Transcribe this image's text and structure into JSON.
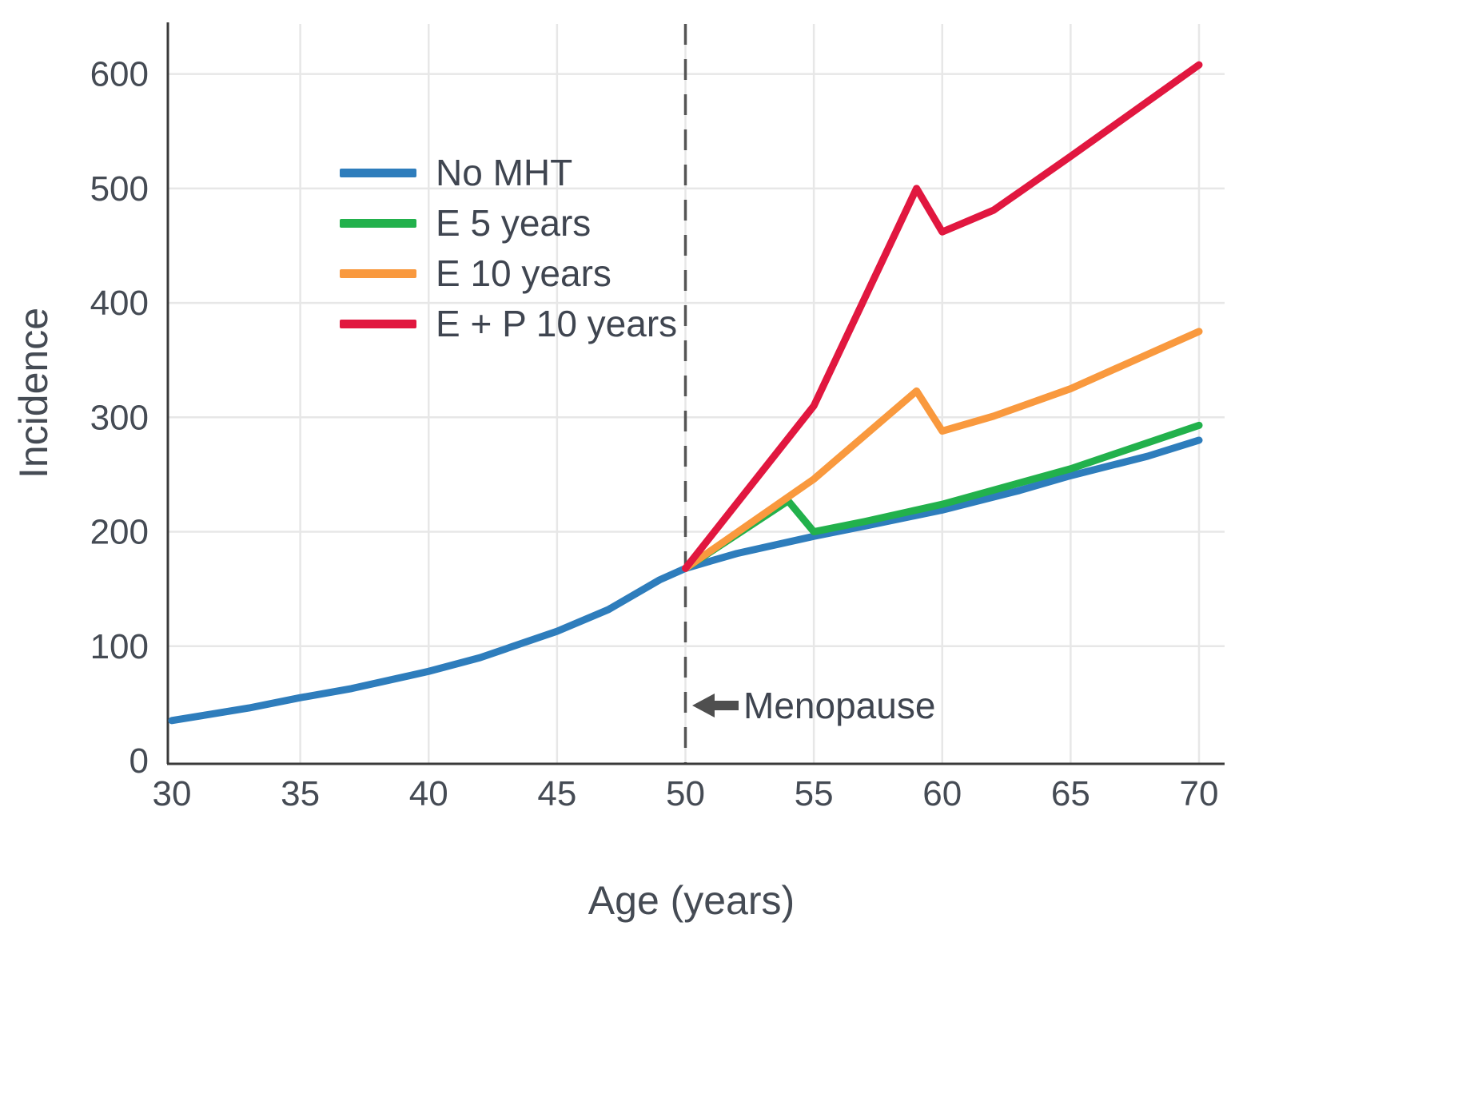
{
  "chart_data": {
    "type": "line",
    "title": "",
    "xlabel": "Age (years)",
    "ylabel": "Incidence",
    "x_ticks": [
      30,
      35,
      40,
      45,
      50,
      55,
      60,
      65,
      70
    ],
    "y_ticks": [
      0,
      100,
      200,
      300,
      400,
      500,
      600
    ],
    "xlim": [
      30,
      70
    ],
    "ylim": [
      0,
      650
    ],
    "grid": true,
    "legend_position": "upper-left-inside",
    "annotation": {
      "label": "Menopause",
      "x": 50,
      "style": "dashed-vertical-line",
      "line_color": "#555555"
    },
    "series": [
      {
        "name": "No MHT",
        "color": "#2e7dbc",
        "points": [
          [
            30,
            35
          ],
          [
            33,
            46
          ],
          [
            35,
            55
          ],
          [
            37,
            63
          ],
          [
            40,
            78
          ],
          [
            42,
            90
          ],
          [
            45,
            113
          ],
          [
            47,
            132
          ],
          [
            49,
            158
          ],
          [
            50,
            168
          ],
          [
            52,
            181
          ],
          [
            55,
            196
          ],
          [
            57,
            205
          ],
          [
            60,
            219
          ],
          [
            63,
            236
          ],
          [
            65,
            249
          ],
          [
            68,
            266
          ],
          [
            70,
            280
          ]
        ]
      },
      {
        "name": "E 5 years",
        "color": "#22b14c",
        "points": [
          [
            50,
            168
          ],
          [
            54,
            227
          ],
          [
            55,
            200
          ],
          [
            57,
            209
          ],
          [
            60,
            224
          ],
          [
            65,
            255
          ],
          [
            70,
            293
          ]
        ]
      },
      {
        "name": "E 10 years",
        "color": "#f9993e",
        "points": [
          [
            50,
            168
          ],
          [
            55,
            246
          ],
          [
            59,
            323
          ],
          [
            60,
            288
          ],
          [
            62,
            301
          ],
          [
            65,
            325
          ],
          [
            70,
            375
          ]
        ]
      },
      {
        "name": "E + P 10 years",
        "color": "#e1173f",
        "points": [
          [
            50,
            168
          ],
          [
            55,
            310
          ],
          [
            59,
            500
          ],
          [
            60,
            462
          ],
          [
            62,
            481
          ],
          [
            65,
            528
          ],
          [
            70,
            608
          ]
        ]
      }
    ],
    "colors": {
      "grid": "#e7e7e7",
      "axis": "#3a3a3a",
      "text": "#454b54",
      "annotation_arrow": "#4f4f4f"
    }
  }
}
